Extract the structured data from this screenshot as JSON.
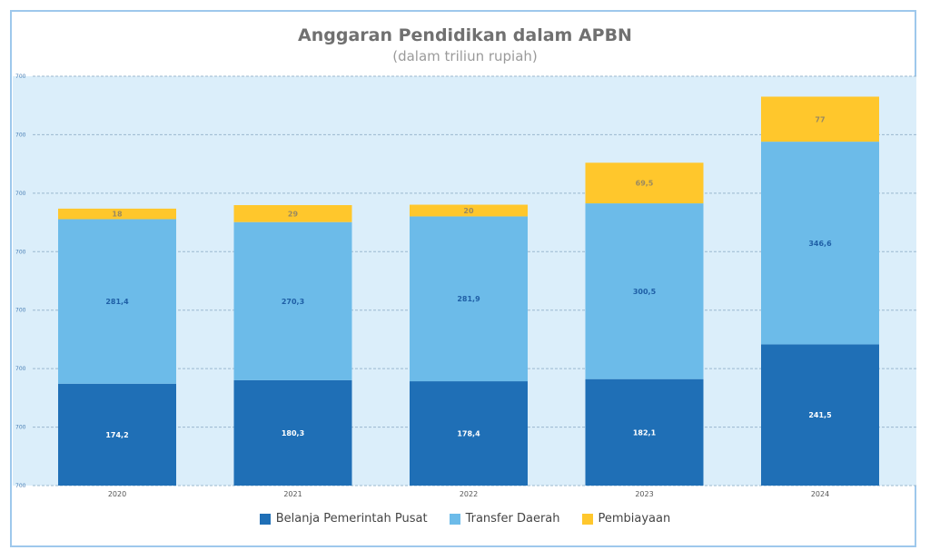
{
  "chart_data": {
    "type": "bar",
    "stacked": true,
    "title": "Anggaran Pendidikan dalam APBN",
    "subtitle": "(dalam triliun rupiah)",
    "xlabel": "",
    "ylabel": "",
    "ylim": [
      0,
      700
    ],
    "y_tick_labels": [
      "700",
      "700",
      "700",
      "700",
      "700",
      "700",
      "700",
      "700"
    ],
    "grid": true,
    "legend_position": "bottom",
    "categories": [
      "2020",
      "2021",
      "2022",
      "2023",
      "2024"
    ],
    "series": [
      {
        "name": "Belanja Pemerintah Pusat",
        "color": "#1f6fb6",
        "label_color": "#ffffff",
        "values": [
          174.2,
          180.3,
          178.4,
          182.1,
          241.5
        ],
        "labels": [
          "174,2",
          "180,3",
          "178,4",
          "182,1",
          "241,5"
        ]
      },
      {
        "name": "Transfer Daerah",
        "color": "#6cbbe9",
        "label_color": "#1f5fa6",
        "values": [
          281.4,
          270.3,
          281.9,
          300.5,
          346.6
        ],
        "labels": [
          "281,4",
          "270,3",
          "281,9",
          "300,5",
          "346,6"
        ]
      },
      {
        "name": "Pembiayaan",
        "color": "#ffc72c",
        "label_color": "#9a8a60",
        "values": [
          18,
          29,
          20,
          69.5,
          77
        ],
        "labels": [
          "18",
          "29",
          "20",
          "69,5",
          "77"
        ]
      }
    ]
  }
}
